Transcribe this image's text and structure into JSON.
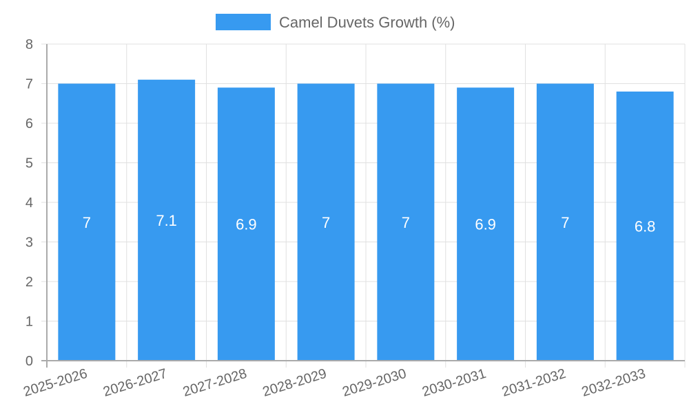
{
  "chart_data": {
    "type": "bar",
    "title": "",
    "categories": [
      "2025-2026",
      "2026-2027",
      "2027-2028",
      "2028-2029",
      "2029-2030",
      "2030-2031",
      "2031-2032",
      "2032-2033"
    ],
    "series": [
      {
        "name": "Camel Duvets Growth (%)",
        "values": [
          7,
          7.1,
          6.9,
          7,
          7,
          6.9,
          7,
          6.8
        ],
        "color": "#379AF0"
      }
    ],
    "data_labels": [
      "7",
      "7.1",
      "6.9",
      "7",
      "7",
      "6.9",
      "7",
      "6.8"
    ],
    "xlabel": "",
    "ylabel": "",
    "ylim": [
      0,
      8
    ],
    "yticks": [
      0,
      1,
      2,
      3,
      4,
      5,
      6,
      7,
      8
    ],
    "grid": true,
    "legend_position": "top"
  },
  "legend": {
    "label": "Camel Duvets Growth (%)",
    "color": "#379AF0"
  },
  "colors": {
    "bar": "#379AF0",
    "grid": "#e0e0e0",
    "axis": "#aaaaaa",
    "text": "#666666"
  }
}
